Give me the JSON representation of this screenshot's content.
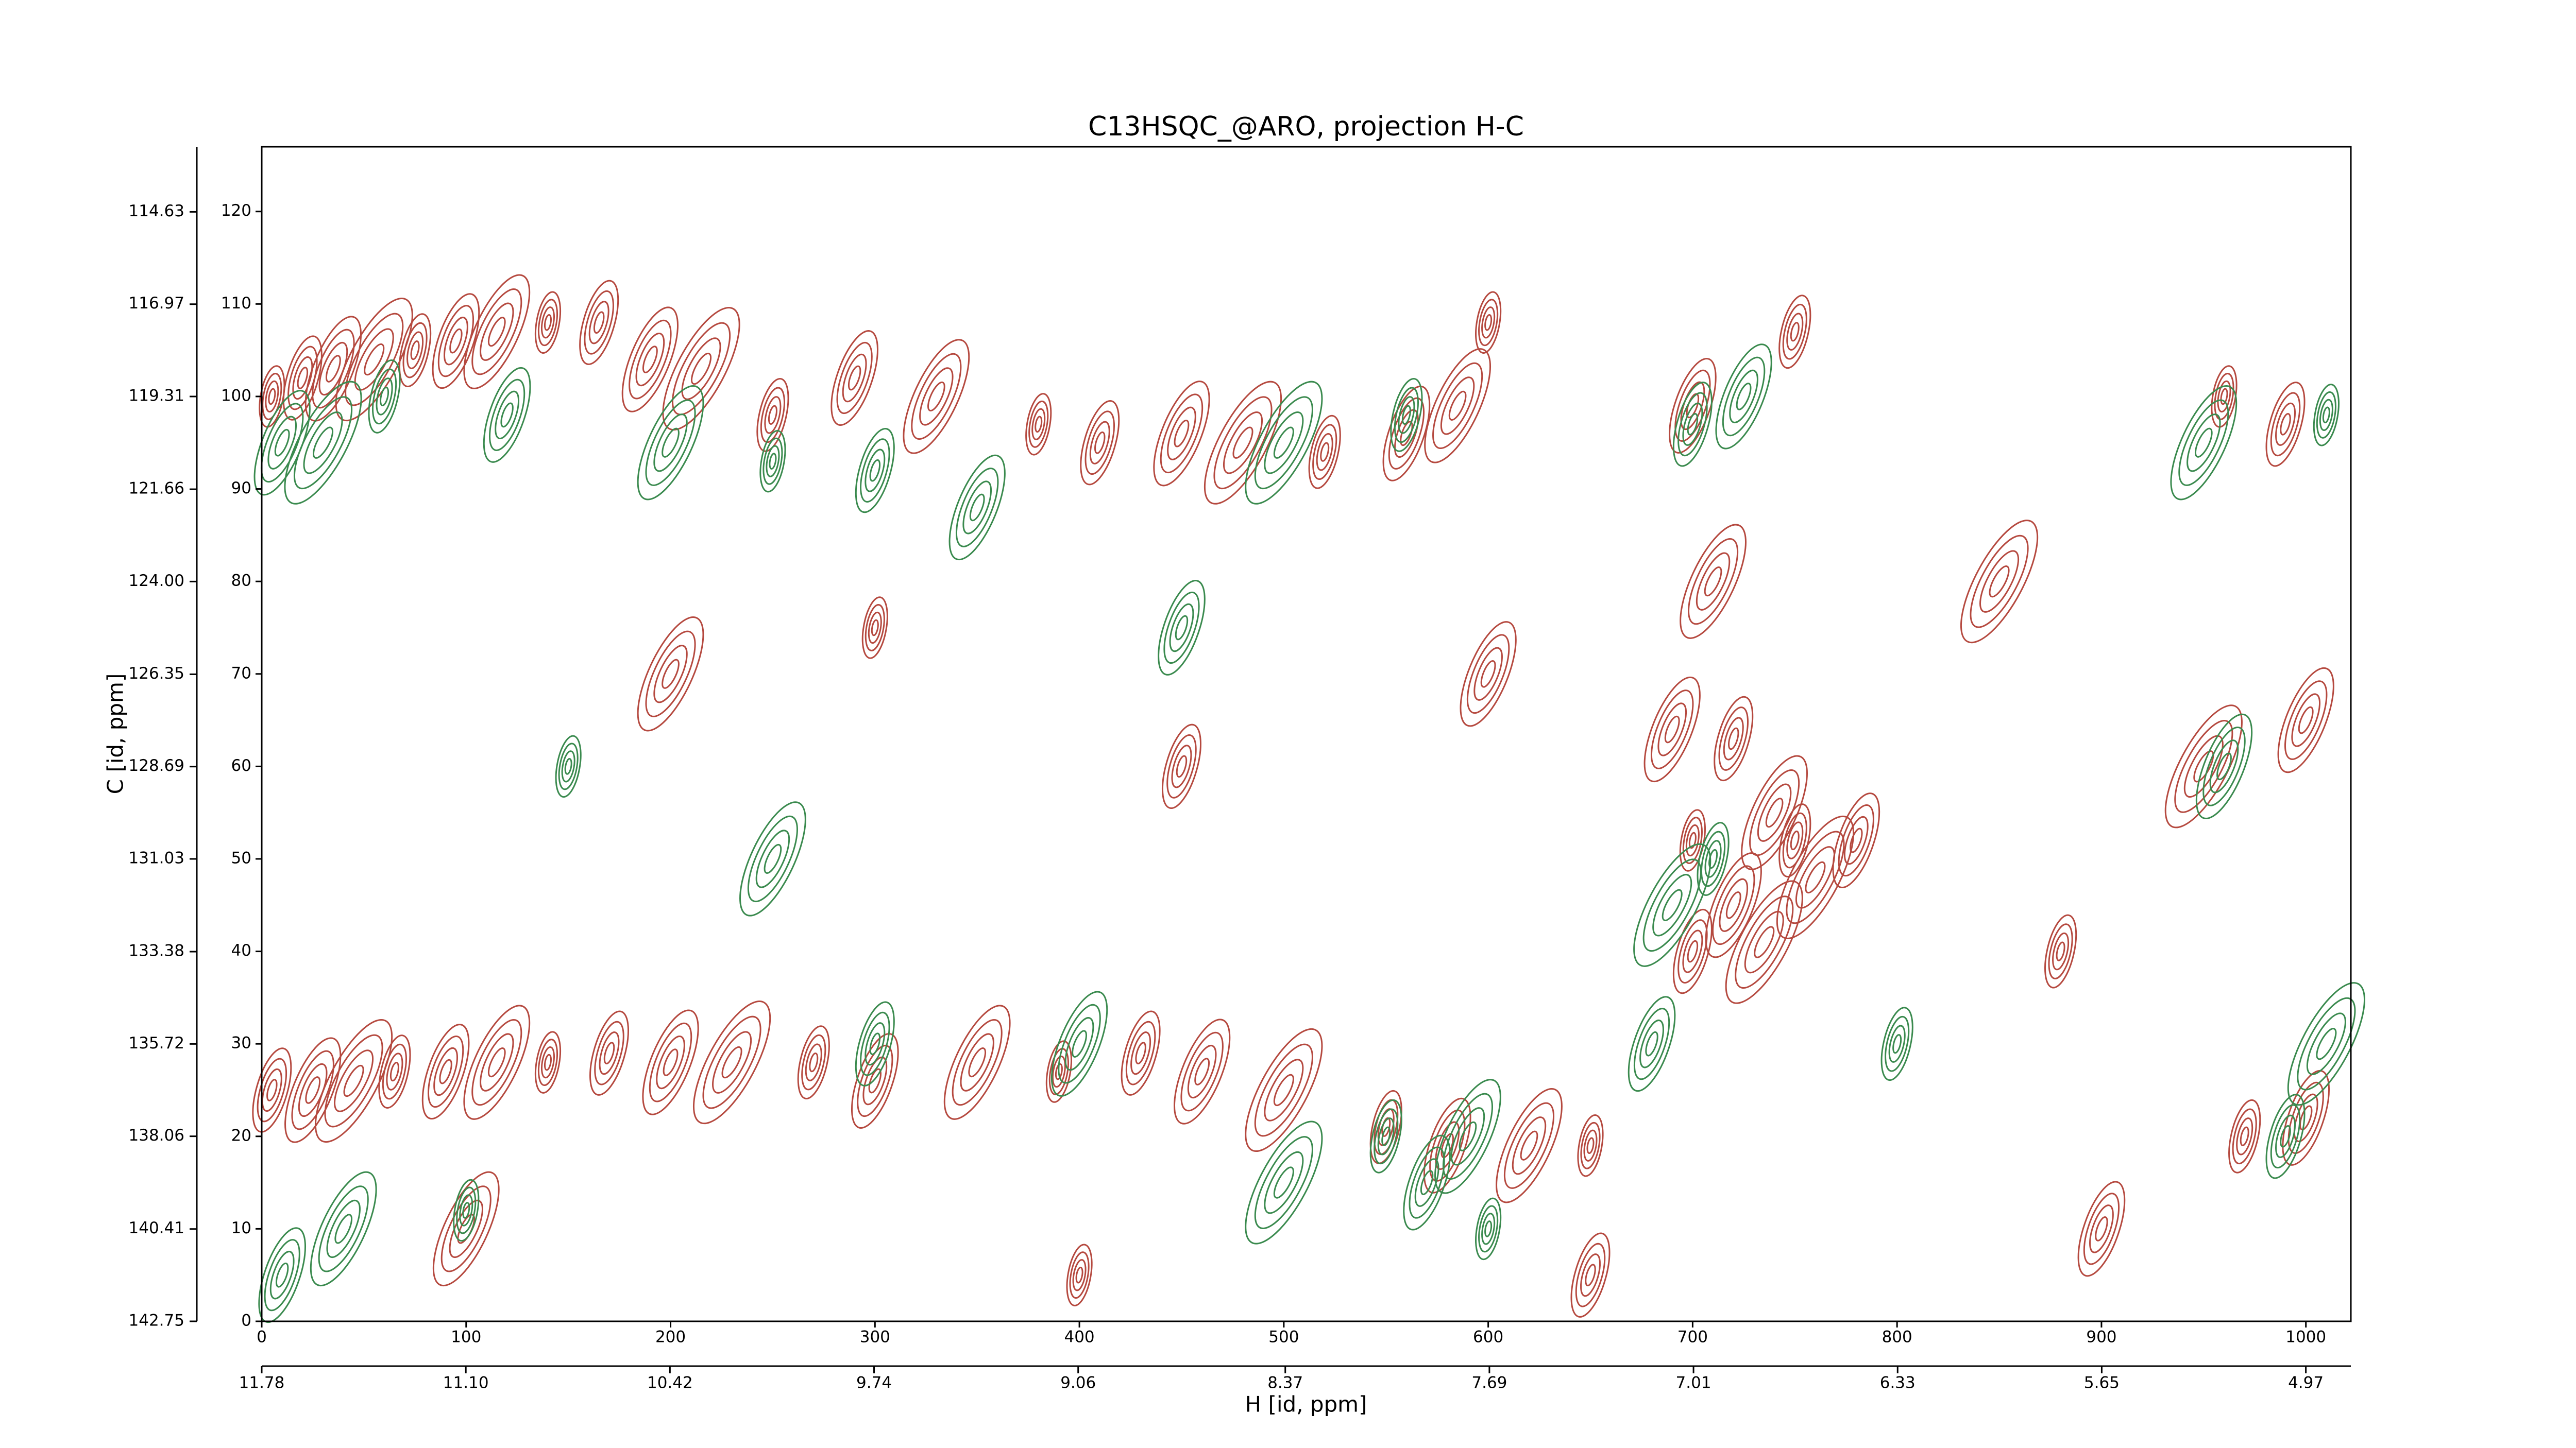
{
  "chart_data": {
    "type": "contour",
    "title": "C13HSQC_@ARO, projection H-C",
    "xlabel": "H [id, ppm]",
    "ylabel": "C [id, ppm]",
    "xlim": [
      0,
      1022
    ],
    "ylim": [
      0,
      127
    ],
    "xticks": [
      0,
      100,
      200,
      300,
      400,
      500,
      600,
      700,
      800,
      900,
      1000
    ],
    "yticks": [
      0,
      10,
      20,
      30,
      40,
      50,
      60,
      70,
      80,
      90,
      100,
      110,
      120
    ],
    "x2lim": [
      11.78,
      4.82
    ],
    "x2ticks": [
      {
        "value": 11.78,
        "label": "11.78"
      },
      {
        "value": 11.1,
        "label": "11.10"
      },
      {
        "value": 10.42,
        "label": "10.42"
      },
      {
        "value": 9.74,
        "label": "9.74"
      },
      {
        "value": 9.06,
        "label": "9.06"
      },
      {
        "value": 8.37,
        "label": "8.37"
      },
      {
        "value": 7.69,
        "label": "7.69"
      },
      {
        "value": 7.01,
        "label": "7.01"
      },
      {
        "value": 6.33,
        "label": "6.33"
      },
      {
        "value": 5.65,
        "label": "5.65"
      },
      {
        "value": 4.97,
        "label": "4.97"
      }
    ],
    "y2lim": [
      142.75,
      112.98
    ],
    "y2ticks": [
      {
        "value": 114.63,
        "label": "114.63"
      },
      {
        "value": 116.97,
        "label": "116.97"
      },
      {
        "value": 119.31,
        "label": "119.31"
      },
      {
        "value": 121.66,
        "label": "121.66"
      },
      {
        "value": 124.0,
        "label": "124.00"
      },
      {
        "value": 126.35,
        "label": "126.35"
      },
      {
        "value": 128.69,
        "label": "128.69"
      },
      {
        "value": 131.03,
        "label": "131.03"
      },
      {
        "value": 133.38,
        "label": "133.38"
      },
      {
        "value": 135.72,
        "label": "135.72"
      },
      {
        "value": 138.06,
        "label": "138.06"
      },
      {
        "value": 140.41,
        "label": "140.41"
      },
      {
        "value": 142.75,
        "label": "142.75"
      }
    ],
    "series": [
      {
        "color": "#b5493f",
        "x": [
          5,
          20,
          35,
          55,
          75,
          95,
          115,
          140,
          165,
          190,
          215,
          250,
          290,
          330,
          380,
          410,
          450,
          480,
          520,
          560,
          585,
          600,
          5,
          25,
          45,
          65,
          90,
          115,
          140,
          170,
          200,
          230,
          270,
          300,
          350,
          390,
          430,
          460,
          500,
          550,
          580,
          620,
          650,
          700,
          720,
          735,
          750,
          780,
          740,
          700,
          720,
          690,
          760,
          750,
          700,
          710,
          960,
          990,
          1000,
          950,
          970,
          1000,
          200,
          300,
          450,
          600,
          850,
          880,
          900,
          100,
          400,
          650
        ],
        "y": [
          100,
          102,
          103,
          104,
          105,
          106,
          107,
          108,
          108,
          104,
          103,
          98,
          102,
          100,
          97,
          95,
          96,
          95,
          94,
          96,
          99,
          108,
          25,
          25,
          26,
          27,
          27,
          28,
          28,
          29,
          28,
          28,
          28,
          26,
          28,
          27,
          29,
          27,
          25,
          21,
          19,
          19,
          19,
          40,
          45,
          41,
          52,
          52,
          55,
          52,
          63,
          64,
          48,
          107,
          99,
          80,
          100,
          97,
          65,
          60,
          20,
          22,
          70,
          75,
          60,
          70,
          80,
          40,
          10,
          10,
          5,
          5
        ]
      },
      {
        "color": "#3a8a4e",
        "x": [
          10,
          30,
          60,
          120,
          200,
          250,
          300,
          350,
          500,
          560,
          10,
          40,
          100,
          300,
          400,
          500,
          550,
          570,
          590,
          600,
          700,
          725,
          690,
          710,
          680,
          950,
          1010,
          990,
          960,
          1010,
          800,
          450,
          250,
          150
        ],
        "y": [
          95,
          95,
          100,
          98,
          95,
          93,
          92,
          88,
          95,
          98,
          5,
          10,
          12,
          30,
          30,
          15,
          20,
          15,
          20,
          10,
          97,
          100,
          45,
          50,
          30,
          95,
          98,
          20,
          60,
          30,
          30,
          75,
          50,
          60
        ]
      }
    ]
  }
}
